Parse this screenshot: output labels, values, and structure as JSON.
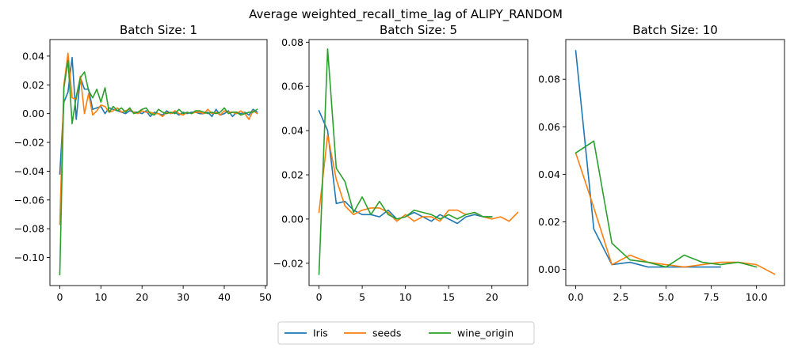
{
  "figure": {
    "title": "Average weighted_recall_time_lag of ALIPY_RANDOM"
  },
  "legend": {
    "placement": "bottom-center",
    "entries": [
      {
        "name": "Iris",
        "color": "#1f77b4"
      },
      {
        "name": "seeds",
        "color": "#ff7f0e"
      },
      {
        "name": "wine_origin",
        "color": "#2ca02c"
      }
    ]
  },
  "chart_data": [
    {
      "type": "line",
      "title": "Batch Size: 1",
      "xlabel": "",
      "ylabel": "",
      "xlim": [
        -2.4,
        50.4
      ],
      "ylim": [
        -0.1195,
        0.0515
      ],
      "xticks": [
        0,
        10,
        20,
        30,
        40,
        50
      ],
      "xtick_labels": [
        "0",
        "10",
        "20",
        "30",
        "40",
        "50"
      ],
      "yticks": [
        -0.1,
        -0.08,
        -0.06,
        -0.04,
        -0.02,
        0.0,
        0.02,
        0.04
      ],
      "ytick_labels": [
        "−0.10",
        "−0.08",
        "−0.06",
        "−0.04",
        "−0.02",
        "0.00",
        "0.02",
        "0.04"
      ],
      "grid": false,
      "series": [
        {
          "name": "Iris",
          "color": "#1f77b4",
          "x": [
            0,
            1,
            2,
            3,
            4,
            5,
            6,
            7,
            8,
            9,
            10,
            11,
            12,
            13,
            14,
            15,
            16,
            17,
            18,
            19,
            20,
            21,
            22,
            23,
            24,
            25,
            26,
            27,
            28,
            29,
            30,
            31,
            32,
            33,
            34,
            35,
            36,
            37,
            38,
            39,
            40,
            41,
            42,
            43,
            44,
            45,
            46,
            47,
            48
          ],
          "y": [
            -0.042,
            0.008,
            0.015,
            0.039,
            -0.004,
            0.025,
            0.017,
            0.017,
            0.003,
            0.004,
            0.005,
            0.0,
            0.004,
            0.003,
            0.002,
            0.001,
            0.0,
            0.002,
            0.001,
            0.001,
            0.0,
            0.002,
            -0.002,
            0.001,
            0.0,
            -0.001,
            0.002,
            0.0,
            0.001,
            -0.001,
            0.001,
            0.0,
            0.001,
            0.001,
            0.0,
            0.0,
            0.001,
            -0.002,
            0.003,
            -0.001,
            0.0,
            0.002,
            -0.002,
            0.001,
            0.0,
            0.001,
            -0.001,
            0.003,
            0.001
          ]
        },
        {
          "name": "seeds",
          "color": "#ff7f0e",
          "x": [
            0,
            1,
            2,
            3,
            4,
            5,
            6,
            7,
            8,
            9,
            10,
            11,
            12,
            13,
            14,
            15,
            16,
            17,
            18,
            19,
            20,
            21,
            22,
            23,
            24,
            25,
            26,
            27,
            28,
            29,
            30,
            31,
            32,
            33,
            34,
            35,
            36,
            37,
            38,
            39,
            40,
            41,
            42,
            43,
            44,
            45,
            46,
            47,
            48
          ],
          "y": [
            -0.077,
            0.02,
            0.042,
            0.011,
            0.01,
            0.026,
            0.0,
            0.014,
            -0.001,
            0.002,
            0.006,
            0.005,
            0.001,
            0.002,
            0.004,
            0.001,
            0.002,
            0.003,
            0.001,
            0.0,
            0.002,
            0.001,
            0.001,
            0.0,
            0.0,
            -0.002,
            0.001,
            0.0,
            0.002,
            0.0,
            -0.001,
            0.001,
            0.0,
            0.001,
            0.001,
            0.0,
            0.003,
            0.0,
            0.001,
            -0.001,
            0.002,
            0.001,
            0.001,
            0.0,
            0.002,
            0.0,
            -0.004,
            0.002,
            0.0
          ]
        },
        {
          "name": "wine_origin",
          "color": "#2ca02c",
          "x": [
            0,
            1,
            2,
            3,
            4,
            5,
            6,
            7,
            8,
            9,
            10,
            11,
            12,
            13,
            14,
            15,
            16,
            17,
            18,
            19,
            20,
            21,
            22,
            23,
            24,
            25,
            26,
            27,
            28,
            29,
            30,
            31,
            32,
            33,
            34,
            35,
            36,
            37,
            38,
            39,
            40,
            41,
            42,
            43,
            44,
            45,
            46,
            47,
            48
          ],
          "y": [
            -0.112,
            0.018,
            0.037,
            -0.007,
            0.012,
            0.025,
            0.029,
            0.016,
            0.011,
            0.017,
            0.008,
            0.018,
            0.001,
            0.005,
            0.002,
            0.004,
            0.001,
            0.004,
            0.0,
            0.001,
            0.003,
            0.004,
            0.0,
            -0.001,
            0.003,
            0.001,
            0.0,
            0.001,
            0.0,
            0.003,
            0.0,
            0.001,
            0.0,
            0.002,
            0.002,
            0.001,
            0.0,
            0.001,
            0.0,
            0.001,
            0.004,
            0.0,
            0.001,
            0.001,
            -0.001,
            0.0,
            0.001,
            0.001,
            0.003
          ]
        }
      ]
    },
    {
      "type": "line",
      "title": "Batch Size: 5",
      "xlabel": "",
      "ylabel": "",
      "xlim": [
        -1.15,
        24.15
      ],
      "ylim": [
        -0.0301,
        0.0812
      ],
      "xticks": [
        0,
        5,
        10,
        15,
        20
      ],
      "xtick_labels": [
        "0",
        "5",
        "10",
        "15",
        "20"
      ],
      "yticks": [
        -0.02,
        0.0,
        0.02,
        0.04,
        0.06,
        0.08
      ],
      "ytick_labels": [
        "−0.02",
        "0.00",
        "0.02",
        "0.04",
        "0.06",
        "0.08"
      ],
      "grid": false,
      "series": [
        {
          "name": "Iris",
          "color": "#1f77b4",
          "x": [
            0,
            1,
            2,
            3,
            4,
            5,
            6,
            7,
            8,
            9,
            10,
            11,
            12,
            13,
            14,
            15,
            16,
            17,
            18,
            19,
            20
          ],
          "y": [
            0.049,
            0.04,
            0.007,
            0.008,
            0.004,
            0.002,
            0.002,
            0.001,
            0.004,
            0.0,
            0.001,
            0.003,
            0.001,
            -0.001,
            0.002,
            0.0,
            -0.002,
            0.001,
            0.002,
            0.001,
            0.001
          ]
        },
        {
          "name": "seeds",
          "color": "#ff7f0e",
          "x": [
            0,
            1,
            2,
            3,
            4,
            5,
            6,
            7,
            8,
            9,
            10,
            11,
            12,
            13,
            14,
            15,
            16,
            17,
            18,
            19,
            20,
            21,
            22,
            23
          ],
          "y": [
            0.003,
            0.038,
            0.018,
            0.006,
            0.002,
            0.004,
            0.005,
            0.005,
            0.003,
            -0.001,
            0.002,
            -0.001,
            0.001,
            0.001,
            -0.001,
            0.004,
            0.004,
            0.002,
            0.003,
            0.001,
            0.0,
            0.001,
            -0.001,
            0.003
          ]
        },
        {
          "name": "wine_origin",
          "color": "#2ca02c",
          "x": [
            0,
            1,
            2,
            3,
            4,
            5,
            6,
            7,
            8,
            9,
            10,
            11,
            12,
            13,
            14,
            15,
            16,
            17,
            18,
            19,
            20
          ],
          "y": [
            -0.025,
            0.077,
            0.023,
            0.017,
            0.003,
            0.01,
            0.002,
            0.008,
            0.002,
            0.0,
            0.001,
            0.004,
            0.003,
            0.002,
            0.0,
            0.002,
            0.0,
            0.002,
            0.003,
            0.001,
            0.001
          ]
        }
      ]
    },
    {
      "type": "line",
      "title": "Batch Size: 10",
      "xlabel": "",
      "ylabel": "",
      "xlim": [
        -0.55,
        11.55
      ],
      "ylim": [
        -0.0068,
        0.0967
      ],
      "xticks": [
        0,
        2.5,
        5,
        7.5,
        10
      ],
      "xtick_labels": [
        "0.0",
        "2.5",
        "5.0",
        "7.5",
        "10.0"
      ],
      "yticks": [
        0.0,
        0.02,
        0.04,
        0.06,
        0.08
      ],
      "ytick_labels": [
        "0.00",
        "0.02",
        "0.04",
        "0.06",
        "0.08"
      ],
      "grid": false,
      "series": [
        {
          "name": "Iris",
          "color": "#1f77b4",
          "x": [
            0,
            1,
            2,
            3,
            4,
            5,
            6,
            7,
            8
          ],
          "y": [
            0.092,
            0.017,
            0.002,
            0.003,
            0.001,
            0.001,
            0.001,
            0.001,
            0.001
          ]
        },
        {
          "name": "seeds",
          "color": "#ff7f0e",
          "x": [
            0,
            1,
            2,
            3,
            4,
            5,
            6,
            7,
            8,
            9,
            10,
            11
          ],
          "y": [
            0.049,
            0.026,
            0.002,
            0.006,
            0.003,
            0.002,
            0.001,
            0.002,
            0.003,
            0.003,
            0.002,
            -0.002
          ]
        },
        {
          "name": "wine_origin",
          "color": "#2ca02c",
          "x": [
            0,
            1,
            2,
            3,
            4,
            5,
            6,
            7,
            8,
            9,
            10
          ],
          "y": [
            0.049,
            0.054,
            0.011,
            0.004,
            0.003,
            0.001,
            0.006,
            0.003,
            0.002,
            0.003,
            0.001
          ]
        }
      ]
    }
  ]
}
